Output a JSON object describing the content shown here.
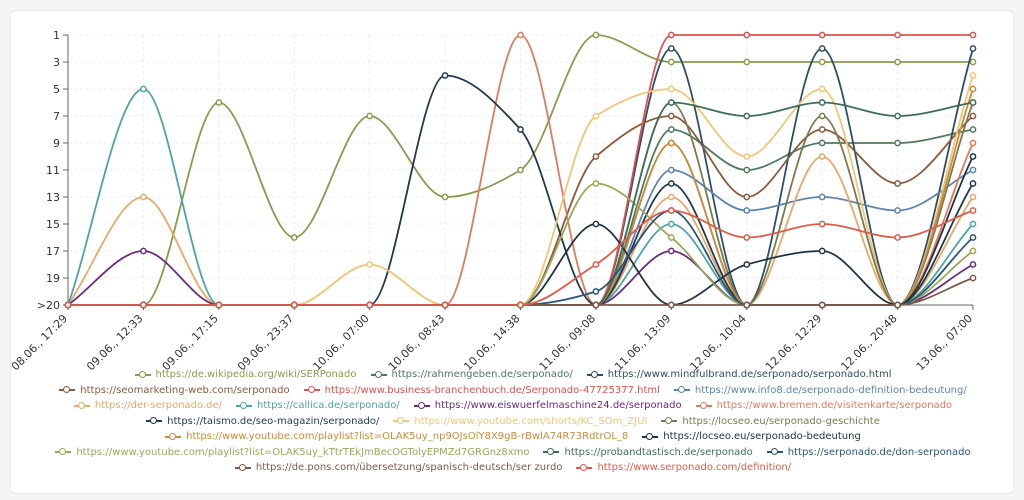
{
  "chart_data": {
    "type": "line",
    "x": [
      "08.06., 17:29",
      "09.06., 12:33",
      "09.06., 17:15",
      "09.06., 23:37",
      "10.06., 07:00",
      "10.06., 08:43",
      "10.06., 14:38",
      "11.06., 09:08",
      "11.06., 13:09",
      "12.06., 10:04",
      "12.06., 12:29",
      "12.06., 20:48",
      "13.06., 07:00"
    ],
    "y_ticks": [
      "1",
      "3",
      "5",
      "7",
      "9",
      "11",
      "13",
      "15",
      "17",
      "19",
      ">20"
    ],
    "ylim": [
      1,
      21
    ],
    "y_reversed": true,
    "grid": true,
    "legend_position": "bottom",
    "series": [
      {
        "name": "https://de.wikipedia.org/wiki/SERPonado",
        "color": "#8b9a4e",
        "values": [
          21,
          21,
          6,
          16,
          7,
          13,
          11,
          1,
          3,
          3,
          3,
          3,
          3
        ]
      },
      {
        "name": "https://rahmengeben.de/serponado/",
        "color": "#4e7a5e",
        "values": [
          21,
          21,
          21,
          21,
          21,
          21,
          21,
          21,
          8,
          11,
          9,
          9,
          8
        ]
      },
      {
        "name": "https://www.mindfulbrand.de/serponado/serponado.html",
        "color": "#2d4e66",
        "values": [
          21,
          21,
          21,
          21,
          21,
          21,
          21,
          21,
          2,
          21,
          2,
          21,
          2
        ]
      },
      {
        "name": "https://seomarketing-web.com/serponado",
        "color": "#8b5a3c",
        "values": [
          21,
          21,
          21,
          21,
          21,
          21,
          21,
          10,
          7,
          13,
          8,
          12,
          7
        ]
      },
      {
        "name": "https://www.business-branchenbuch.de/Serponado-47725377.html",
        "color": "#d9534f",
        "values": [
          21,
          21,
          21,
          21,
          21,
          21,
          21,
          21,
          1,
          1,
          1,
          1,
          1
        ]
      },
      {
        "name": "https://www.info8.de/serponado-definition-bedeutung/",
        "color": "#5b84b1",
        "values": [
          21,
          21,
          21,
          21,
          21,
          21,
          21,
          21,
          11,
          14,
          13,
          14,
          11
        ]
      },
      {
        "name": "https://der-serponado.de/",
        "color": "#e8a86a",
        "values": [
          21,
          13,
          21,
          21,
          21,
          21,
          21,
          21,
          13,
          21,
          10,
          21,
          13
        ]
      },
      {
        "name": "https://callica.de/serponado/",
        "color": "#4fa3a3",
        "values": [
          21,
          5,
          21,
          21,
          21,
          21,
          21,
          21,
          15,
          21,
          21,
          21,
          15
        ]
      },
      {
        "name": "https://www.eiswuerfelmaschine24.de/serponado",
        "color": "#6a2c7a",
        "values": [
          21,
          17,
          21,
          21,
          21,
          21,
          21,
          21,
          17,
          21,
          21,
          21,
          18
        ]
      },
      {
        "name": "https://www.bremen.de/visitenkarte/serponado",
        "color": "#e07a5f",
        "values": [
          21,
          21,
          21,
          21,
          21,
          21,
          1,
          21,
          9,
          21,
          21,
          21,
          9
        ]
      },
      {
        "name": "https://taismo.de/seo-magazin/serponado/",
        "color": "#1f3b4d",
        "values": [
          21,
          21,
          21,
          21,
          21,
          4,
          8,
          21,
          12,
          21,
          21,
          21,
          12
        ]
      },
      {
        "name": "https://www.youtube.com/shorts/KC_SOm_ZJUI",
        "color": "#f0c674",
        "values": [
          21,
          21,
          21,
          21,
          18,
          21,
          21,
          7,
          5,
          10,
          5,
          21,
          4
        ]
      },
      {
        "name": "https://locseo.eu/serponado-geschichte",
        "color": "#7a7a50",
        "values": [
          21,
          21,
          21,
          21,
          21,
          21,
          21,
          21,
          6,
          21,
          7,
          21,
          6
        ]
      },
      {
        "name": "https://www.youtube.com/playlist?list=OLAK5uy_np9OJsOlY8X9gB-rBwlA74R73RdtrOL_8",
        "color": "#c98a3a",
        "values": [
          21,
          21,
          21,
          21,
          21,
          21,
          21,
          21,
          9,
          21,
          21,
          21,
          5
        ]
      },
      {
        "name": "https://locseo.eu/serponado-bedeutung",
        "color": "#223344",
        "values": [
          21,
          21,
          21,
          21,
          21,
          21,
          21,
          15,
          21,
          18,
          17,
          21,
          10
        ]
      },
      {
        "name": "https://www.youtube.com/playlist?list=OLAK5uy_kTtrTEkJmBecOGTolyEPMZd7GRGnz8xmo",
        "color": "#9aa85a",
        "values": [
          21,
          21,
          21,
          21,
          21,
          21,
          21,
          12,
          16,
          21,
          21,
          21,
          17
        ]
      },
      {
        "name": "https://probandtastisch.de/serponado",
        "color": "#3f6e58",
        "values": [
          21,
          21,
          21,
          21,
          21,
          21,
          21,
          21,
          6,
          7,
          6,
          7,
          6
        ]
      },
      {
        "name": "https://serponado.de/don-serponado",
        "color": "#2b5577",
        "values": [
          21,
          21,
          21,
          21,
          21,
          21,
          21,
          20,
          14,
          21,
          21,
          21,
          16
        ]
      },
      {
        "name": "https://de.pons.com/übersetzung/spanisch-deutsch/ser zurdo",
        "color": "#7c5a4a",
        "values": [
          21,
          21,
          21,
          21,
          21,
          21,
          21,
          21,
          21,
          21,
          21,
          21,
          19
        ]
      },
      {
        "name": "https://www.serponado.com/definition/",
        "color": "#e05a4a",
        "values": [
          21,
          21,
          21,
          21,
          21,
          21,
          21,
          18,
          14,
          16,
          15,
          16,
          14
        ]
      }
    ],
    "legend_rows": [
      [
        0,
        1,
        2
      ],
      [
        3,
        4,
        5
      ],
      [
        6,
        7,
        8,
        9
      ],
      [
        10,
        11,
        12
      ],
      [
        13,
        14
      ],
      [
        15,
        16,
        17
      ],
      [
        18,
        19
      ]
    ]
  }
}
